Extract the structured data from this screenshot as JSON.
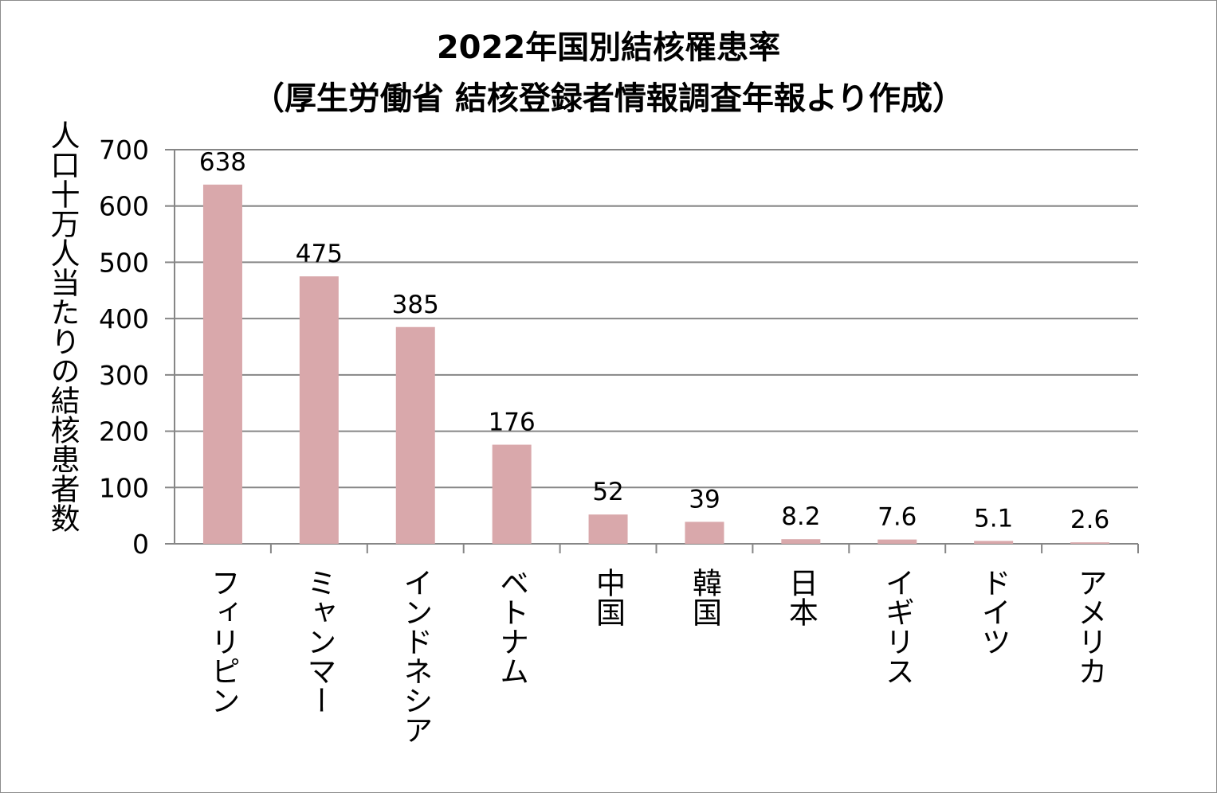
{
  "title_line1": "2022年国別結核罹患率",
  "title_line2": "（厚生労働省 結核登録者情報調査年報より作成）",
  "chart_data": {
    "type": "bar",
    "ylabel": "人口十万人当たりの結核患者数",
    "xlabel": "",
    "ylim": [
      0,
      700
    ],
    "yticks": [
      0,
      100,
      200,
      300,
      400,
      500,
      600,
      700
    ],
    "grid": true,
    "categories": [
      "フィリピン",
      "ミャンマー",
      "インドネシア",
      "ベトナム",
      "中国",
      "韓国",
      "日本",
      "イギリス",
      "ドイツ",
      "アメリカ"
    ],
    "values": [
      638,
      475,
      385,
      176,
      52,
      39,
      8.2,
      7.6,
      5.1,
      2.6
    ],
    "data_labels": [
      "638",
      "475",
      "385",
      "176",
      "52",
      "39",
      "8.2",
      "7.6",
      "5.1",
      "2.6"
    ],
    "bar_color": "#d9a8ab",
    "grid_color": "#868686"
  }
}
